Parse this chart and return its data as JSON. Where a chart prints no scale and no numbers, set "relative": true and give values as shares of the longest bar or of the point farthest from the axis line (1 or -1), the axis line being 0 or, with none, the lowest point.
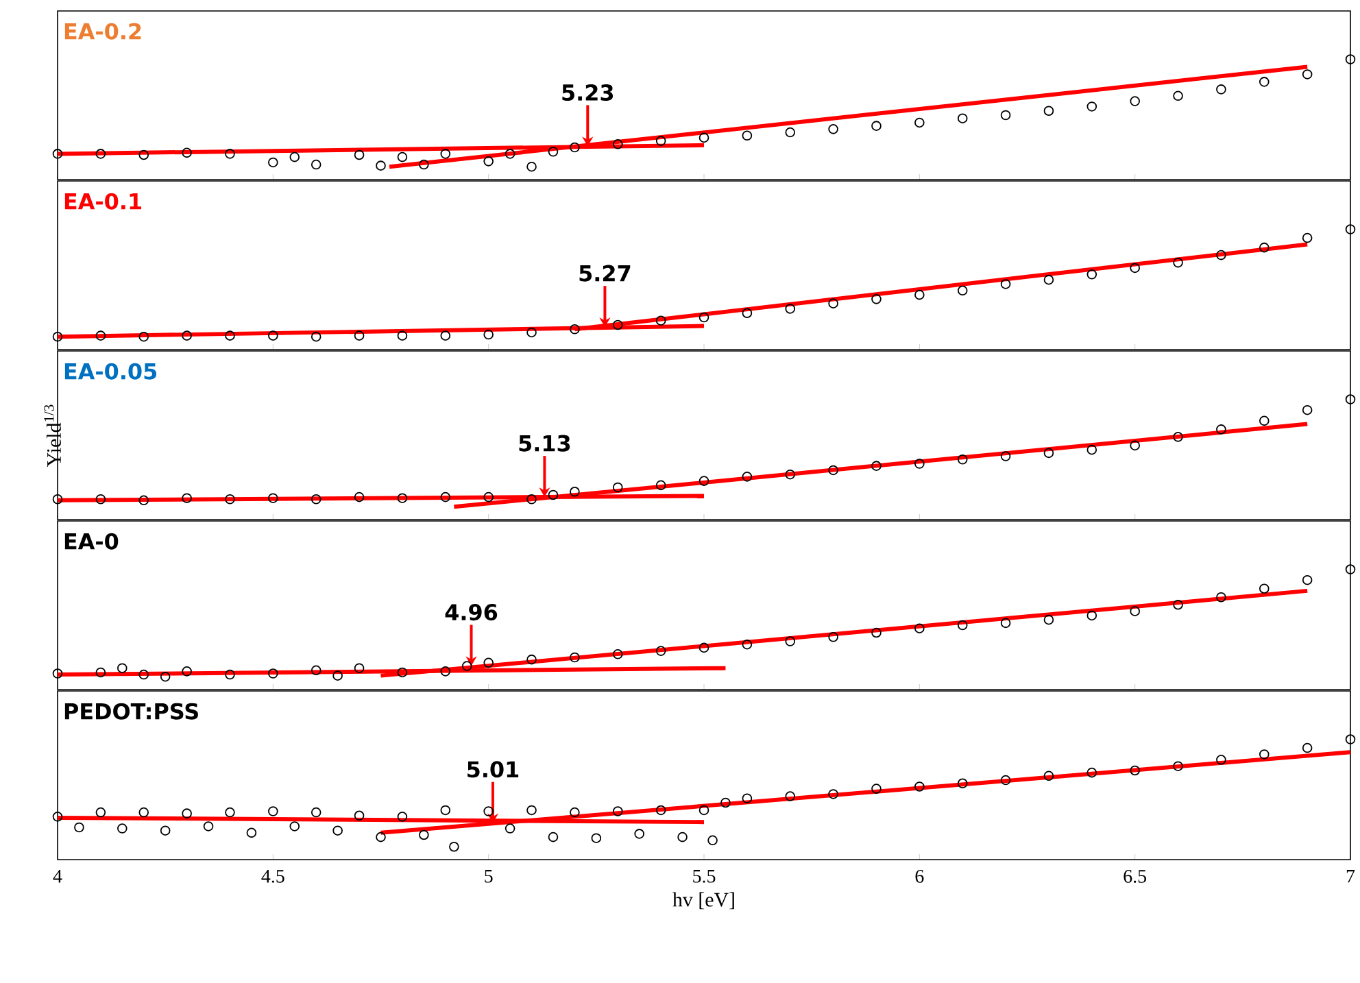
{
  "chart_data": [
    {
      "type": "scatter",
      "title": "EA-0.2",
      "relative": true,
      "xlim": [
        4,
        7
      ],
      "xticks": [
        4,
        4.5,
        5,
        5.5,
        6,
        6.5,
        7
      ],
      "tick_labels": false,
      "series": [
        {
          "color": "#000000",
          "x": [
            4.0,
            4.1,
            4.2,
            4.3,
            4.4,
            4.5,
            4.55,
            4.6,
            4.7,
            4.75,
            4.8,
            4.85,
            4.9,
            5.0,
            5.05,
            5.1,
            5.15,
            5.2,
            5.3,
            5.4,
            5.5,
            5.6,
            5.7,
            5.8,
            5.9,
            6.0,
            6.1,
            6.2,
            6.3,
            6.4,
            6.5,
            6.6,
            6.7,
            6.8,
            6.9,
            7.0
          ],
          "values": [
            0.12,
            0.12,
            0.11,
            0.13,
            0.12,
            0.04,
            0.09,
            0.02,
            0.11,
            0.01,
            0.09,
            0.02,
            0.12,
            0.05,
            0.12,
            0,
            0.14,
            0.18,
            0.21,
            0.24,
            0.27,
            0.29,
            0.32,
            0.35,
            0.38,
            0.41,
            0.45,
            0.48,
            0.52,
            0.56,
            0.61,
            0.66,
            0.72,
            0.79,
            0.86,
            1
          ]
        },
        {
          "type": "line",
          "color": "#ff0000",
          "x": [
            4.0,
            5.5
          ],
          "values": [
            0.12,
            0.2
          ]
        },
        {
          "type": "line",
          "color": "#ff0000",
          "x": [
            4.77,
            6.9
          ],
          "values": [
            0,
            0.93
          ]
        }
      ],
      "annotations": [
        {
          "text": "5.23",
          "x": 5.23,
          "y": 0.19
        }
      ]
    },
    {
      "type": "scatter",
      "title": "EA-0.1",
      "relative": true,
      "xlim": [
        4,
        7
      ],
      "xticks": [
        4,
        4.5,
        5,
        5.5,
        6,
        6.5,
        7
      ],
      "tick_labels": false,
      "series": [
        {
          "color": "#000000",
          "x": [
            4.0,
            4.1,
            4.2,
            4.3,
            4.4,
            4.5,
            4.6,
            4.7,
            4.8,
            4.9,
            5.0,
            5.1,
            5.2,
            5.3,
            5.4,
            5.5,
            5.6,
            5.7,
            5.8,
            5.9,
            6.0,
            6.1,
            6.2,
            6.3,
            6.4,
            6.5,
            6.6,
            6.7,
            6.8,
            6.9,
            7.0
          ],
          "values": [
            0,
            0.01,
            0,
            0.01,
            0.01,
            0.01,
            0,
            0.01,
            0.01,
            0.01,
            0.02,
            0.04,
            0.07,
            0.11,
            0.15,
            0.18,
            0.22,
            0.26,
            0.31,
            0.35,
            0.39,
            0.43,
            0.49,
            0.53,
            0.58,
            0.64,
            0.69,
            0.76,
            0.83,
            0.92,
            1
          ]
        },
        {
          "type": "line",
          "color": "#ff0000",
          "x": [
            4.0,
            5.5
          ],
          "values": [
            0,
            0.1
          ]
        },
        {
          "type": "line",
          "color": "#ff0000",
          "x": [
            5.2,
            6.9
          ],
          "values": [
            0.07,
            0.86
          ]
        }
      ],
      "annotations": [
        {
          "text": "5.27",
          "x": 5.27,
          "y": 0.09
        }
      ]
    },
    {
      "type": "scatter",
      "title": "EA-0.05",
      "ylabel": "Yield$^{1/3}$",
      "relative": true,
      "xlim": [
        4,
        7
      ],
      "xticks": [
        4,
        4.5,
        5,
        5.5,
        6,
        6.5,
        7
      ],
      "tick_labels": false,
      "series": [
        {
          "color": "#000000",
          "x": [
            4.0,
            4.1,
            4.2,
            4.3,
            4.4,
            4.5,
            4.6,
            4.7,
            4.8,
            4.9,
            5.0,
            5.1,
            5.15,
            5.2,
            5.3,
            5.4,
            5.5,
            5.6,
            5.7,
            5.8,
            5.9,
            6.0,
            6.1,
            6.2,
            6.3,
            6.4,
            6.5,
            6.6,
            6.7,
            6.8,
            6.9,
            7.0
          ],
          "values": [
            0.07,
            0.07,
            0.06,
            0.08,
            0.07,
            0.08,
            0.07,
            0.09,
            0.08,
            0.09,
            0.09,
            0.07,
            0.11,
            0.14,
            0.18,
            0.2,
            0.24,
            0.28,
            0.3,
            0.34,
            0.38,
            0.4,
            0.44,
            0.47,
            0.5,
            0.53,
            0.57,
            0.65,
            0.72,
            0.8,
            0.9,
            1
          ]
        },
        {
          "type": "line",
          "color": "#ff0000",
          "x": [
            4.0,
            5.5
          ],
          "values": [
            0.06,
            0.1
          ]
        },
        {
          "type": "line",
          "color": "#ff0000",
          "x": [
            4.92,
            6.9
          ],
          "values": [
            0,
            0.77
          ]
        }
      ],
      "annotations": [
        {
          "text": "5.13",
          "x": 5.13,
          "y": 0.09
        }
      ]
    },
    {
      "type": "scatter",
      "title": "EA-0",
      "relative": true,
      "xlim": [
        4,
        7
      ],
      "xticks": [
        4,
        4.5,
        5,
        5.5,
        6,
        6.5,
        7
      ],
      "tick_labels": false,
      "series": [
        {
          "color": "#000000",
          "x": [
            4.0,
            4.1,
            4.15,
            4.2,
            4.25,
            4.3,
            4.4,
            4.5,
            4.6,
            4.65,
            4.7,
            4.8,
            4.9,
            4.95,
            5.0,
            5.1,
            5.2,
            5.3,
            5.4,
            5.5,
            5.6,
            5.7,
            5.8,
            5.9,
            6.0,
            6.1,
            6.2,
            6.3,
            6.4,
            6.5,
            6.6,
            6.7,
            6.8,
            6.9,
            7.0
          ],
          "values": [
            0.03,
            0.04,
            0.08,
            0.02,
            0,
            0.05,
            0.02,
            0.03,
            0.06,
            0.01,
            0.08,
            0.04,
            0.05,
            0.1,
            0.13,
            0.16,
            0.18,
            0.21,
            0.24,
            0.27,
            0.3,
            0.33,
            0.37,
            0.41,
            0.45,
            0.48,
            0.5,
            0.53,
            0.57,
            0.61,
            0.67,
            0.74,
            0.82,
            0.9,
            1
          ]
        },
        {
          "type": "line",
          "color": "#ff0000",
          "x": [
            4.0,
            5.55
          ],
          "values": [
            0.02,
            0.08
          ]
        },
        {
          "type": "line",
          "color": "#ff0000",
          "x": [
            4.75,
            6.9
          ],
          "values": [
            0.01,
            0.8
          ]
        }
      ],
      "annotations": [
        {
          "text": "4.96",
          "x": 4.96,
          "y": 0.1
        }
      ]
    },
    {
      "type": "scatter",
      "title": "PEDOT:PSS",
      "xlabel": "hv [eV]",
      "relative": true,
      "xlim": [
        4,
        7
      ],
      "xticks": [
        4,
        4.5,
        5,
        5.5,
        6,
        6.5,
        7
      ],
      "tick_labels": "x",
      "series": [
        {
          "color": "#000000",
          "x": [
            4.0,
            4.05,
            4.1,
            4.15,
            4.2,
            4.25,
            4.3,
            4.35,
            4.4,
            4.45,
            4.5,
            4.55,
            4.6,
            4.65,
            4.7,
            4.75,
            4.8,
            4.85,
            4.9,
            4.92,
            5.0,
            5.05,
            5.1,
            5.15,
            5.2,
            5.25,
            5.3,
            5.35,
            5.4,
            5.45,
            5.5,
            5.52,
            5.55,
            5.6,
            5.7,
            5.8,
            5.9,
            6.0,
            6.1,
            6.2,
            6.3,
            6.4,
            6.5,
            6.6,
            6.7,
            6.8,
            6.9,
            7.0
          ],
          "values": [
            0.28,
            0.18,
            0.32,
            0.17,
            0.32,
            0.15,
            0.31,
            0.19,
            0.32,
            0.13,
            0.33,
            0.19,
            0.32,
            0.15,
            0.29,
            0.09,
            0.28,
            0.11,
            0.34,
            0,
            0.33,
            0.17,
            0.34,
            0.09,
            0.32,
            0.08,
            0.33,
            0.12,
            0.34,
            0.09,
            0.34,
            0.06,
            0.41,
            0.45,
            0.47,
            0.49,
            0.54,
            0.56,
            0.59,
            0.62,
            0.66,
            0.69,
            0.71,
            0.75,
            0.81,
            0.86,
            0.92,
            1
          ]
        },
        {
          "type": "line",
          "color": "#ff0000",
          "x": [
            4.0,
            5.5
          ],
          "values": [
            0.27,
            0.23
          ]
        },
        {
          "type": "line",
          "color": "#ff0000",
          "x": [
            4.75,
            7.0
          ],
          "values": [
            0.13,
            0.88
          ]
        }
      ],
      "annotations": [
        {
          "text": "5.01",
          "x": 5.01,
          "y": 0.22
        }
      ]
    }
  ]
}
